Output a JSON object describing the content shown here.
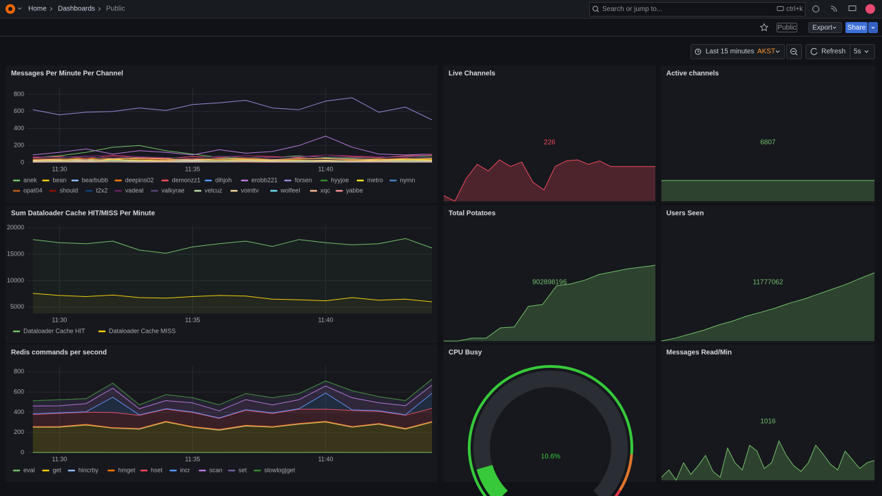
{
  "header": {
    "breadcrumbs": [
      "Home",
      "Dashboards",
      "Public"
    ],
    "search": "Search or jump to...",
    "shortcut": "ctrl+k"
  },
  "toolbar": {
    "badge": "Public",
    "export": "Export",
    "share": "Share",
    "time_range": "Last 15 minutes",
    "timezone": "AKST",
    "refresh": "Refresh",
    "interval": "5s"
  },
  "panels": [
    {
      "type": "line",
      "title": "Messages Per Minute Per Channel",
      "categories": [
        null,
        "11:30",
        null,
        null,
        null,
        null,
        "11:35",
        null,
        null,
        null,
        null,
        "11:40",
        null,
        null,
        null,
        null
      ],
      "ylim": [
        0,
        880
      ],
      "yticks": [
        0,
        200,
        400,
        600,
        800
      ],
      "grid": true,
      "series": [
        {
          "name": "anek",
          "color": "#73bf69",
          "values": [
            60,
            80,
            120,
            180,
            200,
            140,
            100,
            60,
            50,
            60,
            80,
            60,
            50,
            60,
            70,
            80
          ]
        },
        {
          "name": "bean",
          "color": "#f2cc0c",
          "values": [
            30,
            40,
            50,
            35,
            60,
            45,
            30,
            40,
            55,
            35,
            40,
            50,
            30,
            45,
            35,
            40
          ]
        },
        {
          "name": "bearbubb",
          "color": "#8ab8ff",
          "values": [
            20,
            25,
            30,
            20,
            15,
            25,
            30,
            20,
            25,
            30,
            20,
            15,
            25,
            20,
            30,
            25
          ]
        },
        {
          "name": "deepins02",
          "color": "#ff780a",
          "values": [
            10,
            15,
            10,
            20,
            15,
            10,
            15,
            20,
            10,
            15,
            10,
            20,
            15,
            10,
            15,
            10
          ]
        },
        {
          "name": "demonzz1",
          "color": "#f2495c",
          "values": [
            60,
            70,
            50,
            80,
            60,
            50,
            70,
            60,
            80,
            70,
            60,
            90,
            70,
            60,
            80,
            90
          ]
        },
        {
          "name": "dihjoh",
          "color": "#5794f2",
          "values": [
            5,
            8,
            6,
            10,
            7,
            5,
            8,
            6,
            9,
            7,
            5,
            8,
            6,
            7,
            5,
            6
          ]
        },
        {
          "name": "erobb221",
          "color": "#b877d9",
          "values": [
            90,
            120,
            160,
            100,
            140,
            120,
            90,
            150,
            110,
            130,
            200,
            310,
            180,
            100,
            90,
            100
          ]
        },
        {
          "name": "forsen",
          "color": "#8f8ad6",
          "values": [
            620,
            560,
            590,
            600,
            640,
            610,
            680,
            700,
            730,
            640,
            620,
            720,
            760,
            590,
            650,
            500
          ]
        },
        {
          "name": "hyyjoe",
          "color": "#37872d",
          "values": [
            15,
            20,
            18,
            25,
            20,
            15,
            22,
            18,
            20,
            25,
            18,
            20,
            15,
            22,
            20,
            18
          ]
        },
        {
          "name": "metro",
          "color": "#fade2a",
          "values": [
            25,
            30,
            20,
            35,
            30,
            25,
            20,
            30,
            35,
            25,
            30,
            20,
            25,
            30,
            35,
            30
          ]
        },
        {
          "name": "nymn",
          "color": "#447ebc",
          "values": [
            10,
            12,
            8,
            15,
            10,
            12,
            9,
            11,
            14,
            10,
            12,
            8,
            10,
            12,
            9,
            11
          ]
        },
        {
          "name": "opat04",
          "color": "#c15c17",
          "values": [
            40,
            45,
            35,
            50,
            40,
            30,
            45,
            40,
            50,
            35,
            40,
            45,
            30,
            40,
            50,
            45
          ]
        },
        {
          "name": "should",
          "color": "#890f02",
          "values": [
            3,
            5,
            4,
            6,
            3,
            5,
            4,
            6,
            5,
            4,
            3,
            5,
            6,
            4,
            5,
            3
          ]
        },
        {
          "name": "t2x2",
          "color": "#0a437c",
          "values": [
            8,
            10,
            7,
            12,
            9,
            8,
            10,
            11,
            9,
            8,
            10,
            12,
            8,
            9,
            10,
            8
          ]
        },
        {
          "name": "vadeal",
          "color": "#6d1f62",
          "values": [
            70,
            60,
            80,
            90,
            70,
            60,
            50,
            70,
            80,
            60,
            70,
            90,
            80,
            70,
            60,
            100
          ]
        },
        {
          "name": "valkyrae",
          "color": "#584477",
          "values": [
            50,
            60,
            70,
            55,
            65,
            60,
            50,
            75,
            60,
            55,
            70,
            65,
            60,
            55,
            70,
            60
          ]
        },
        {
          "name": "velcuz",
          "color": "#b7dbab",
          "values": [
            12,
            15,
            10,
            18,
            14,
            12,
            16,
            13,
            15,
            12,
            14,
            16,
            12,
            15,
            13,
            14
          ]
        },
        {
          "name": "vointtv",
          "color": "#f4d598",
          "values": [
            20,
            25,
            18,
            30,
            22,
            20,
            24,
            26,
            22,
            20,
            25,
            28,
            22,
            20,
            24,
            22
          ]
        },
        {
          "name": "wolfeel",
          "color": "#70dbed",
          "values": [
            4,
            6,
            5,
            7,
            4,
            6,
            5,
            6,
            7,
            5,
            4,
            6,
            5,
            6,
            4,
            5
          ]
        },
        {
          "name": "xqc",
          "color": "#f9ba8f",
          "values": [
            30,
            40,
            35,
            45,
            50,
            40,
            35,
            45,
            40,
            35,
            50,
            45,
            40,
            35,
            45,
            50
          ]
        },
        {
          "name": "yabbe",
          "color": "#f29191",
          "values": [
            6,
            8,
            7,
            9,
            6,
            8,
            7,
            9,
            8,
            6,
            7,
            9,
            8,
            7,
            6,
            8
          ]
        }
      ]
    },
    {
      "type": "stat",
      "title": "Live Channels",
      "value": 226,
      "color": "#f2495c",
      "sparkline": [
        200,
        195,
        215,
        228,
        222,
        232,
        226,
        230,
        212,
        205,
        226,
        231,
        232,
        228,
        231,
        226,
        226,
        226,
        226,
        226
      ]
    },
    {
      "type": "stat",
      "title": "Active channels",
      "value": 6807,
      "color": "#73bf69",
      "sparkline": [
        6807,
        6807,
        6807,
        6807,
        6807,
        6807,
        6807,
        6807,
        6807,
        6807
      ]
    },
    {
      "type": "line",
      "title": "Sum Dataloader Cache HIT/MISS Per Minute",
      "categories": [
        null,
        "11:30",
        null,
        null,
        null,
        null,
        "11:35",
        null,
        null,
        null,
        null,
        "11:40",
        null,
        null,
        null,
        null
      ],
      "ylim": [
        3800,
        20500
      ],
      "yticks": [
        5000,
        10000,
        15000,
        20000
      ],
      "grid": true,
      "fill": true,
      "series": [
        {
          "name": "Dataloader Cache HIT",
          "color": "#73bf69",
          "values": [
            17800,
            17200,
            17000,
            17500,
            15800,
            15200,
            16400,
            17000,
            17500,
            16500,
            17800,
            17200,
            16800,
            17000,
            18000,
            16200
          ]
        },
        {
          "name": "Dataloader Cache MISS",
          "color": "#f2cc0c",
          "values": [
            7600,
            7200,
            7000,
            7300,
            6800,
            6700,
            7000,
            7200,
            7100,
            6500,
            6400,
            6200,
            6800,
            6300,
            6500,
            6000
          ]
        }
      ]
    },
    {
      "type": "stat",
      "title": "Total Potatoes",
      "value": 902898196,
      "color": "#73bf69",
      "sparkline": [
        902890100,
        902890100,
        902890400,
        902890400,
        902891500,
        902891600,
        902893800,
        902894000,
        902896000,
        902896200,
        902896600,
        902897200,
        902897500,
        902897800,
        902898000,
        902898196
      ]
    },
    {
      "type": "stat",
      "title": "Users Seen",
      "value": 11777062,
      "color": "#73bf69",
      "sparkline": [
        11770200,
        11770500,
        11770900,
        11771300,
        11771800,
        11772200,
        11772700,
        11773100,
        11773500,
        11774000,
        11774400,
        11774900,
        11775400,
        11775900,
        11776500,
        11777062
      ]
    },
    {
      "type": "line",
      "title": "Redis commands per second",
      "categories": [
        null,
        "11:30",
        null,
        null,
        null,
        null,
        "11:35",
        null,
        null,
        null,
        null,
        "11:40",
        null,
        null,
        null,
        null
      ],
      "ylim": [
        0,
        860
      ],
      "yticks": [
        0,
        200,
        400,
        600,
        800
      ],
      "grid": true,
      "stacked": true,
      "series": [
        {
          "name": "eval",
          "color": "#73bf69",
          "values": [
            2,
            2,
            3,
            2,
            2,
            3,
            2,
            2,
            3,
            2,
            2,
            3,
            2,
            2,
            3,
            2
          ]
        },
        {
          "name": "get",
          "color": "#f2cc0c",
          "values": [
            250,
            250,
            270,
            240,
            230,
            300,
            250,
            220,
            260,
            250,
            280,
            300,
            250,
            280,
            230,
            300
          ]
        },
        {
          "name": "hincrby",
          "color": "#8ab8ff",
          "values": [
            3,
            3,
            4,
            3,
            3,
            4,
            3,
            3,
            4,
            3,
            3,
            4,
            3,
            3,
            4,
            3
          ]
        },
        {
          "name": "hmget",
          "color": "#ff780a",
          "values": [
            3,
            4,
            3,
            3,
            4,
            3,
            3,
            4,
            3,
            3,
            4,
            3,
            3,
            4,
            3,
            3
          ]
        },
        {
          "name": "hset",
          "color": "#f2495c",
          "values": [
            120,
            130,
            120,
            150,
            130,
            120,
            140,
            110,
            150,
            130,
            140,
            120,
            160,
            120,
            130,
            130
          ]
        },
        {
          "name": "incr",
          "color": "#5794f2",
          "values": [
            5,
            5,
            5,
            150,
            5,
            5,
            5,
            5,
            5,
            5,
            5,
            160,
            5,
            5,
            5,
            150
          ]
        },
        {
          "name": "scan",
          "color": "#b877d9",
          "values": [
            80,
            70,
            80,
            90,
            60,
            80,
            90,
            70,
            100,
            80,
            90,
            70,
            120,
            80,
            90,
            80
          ]
        },
        {
          "name": "set",
          "color": "#705da0",
          "values": [
            50,
            60,
            50,
            50,
            40,
            60,
            50,
            60,
            60,
            70,
            60,
            50,
            70,
            60,
            50,
            60
          ]
        },
        {
          "name": "slowlog|get",
          "color": "#37872d",
          "values": [
            0,
            0,
            0,
            0,
            0,
            0,
            0,
            0,
            0,
            0,
            0,
            0,
            0,
            0,
            0,
            0
          ]
        }
      ]
    },
    {
      "type": "gauge",
      "title": "CPU Busy",
      "values": [
        10.6
      ],
      "value_labels": [
        "10.6%"
      ],
      "ylim": [
        0,
        100
      ],
      "color": "#37c93a",
      "thresholds": [
        {
          "value": 0,
          "color": "#37c93a"
        },
        {
          "value": 85,
          "color": "#e0752d"
        },
        {
          "value": 95,
          "color": "#e02f44"
        }
      ]
    },
    {
      "type": "stat",
      "title": "Messages Read/Min",
      "value": 1016,
      "color": "#73bf69",
      "sparkline": [
        900,
        950,
        880,
        1000,
        920,
        980,
        1050,
        940,
        900,
        1100,
        1000,
        950,
        1120,
        1080,
        960,
        1000,
        1150,
        1050,
        980,
        940,
        1000,
        1120,
        1060,
        990,
        950,
        1080,
        1020,
        960,
        1000,
        1016
      ]
    }
  ]
}
